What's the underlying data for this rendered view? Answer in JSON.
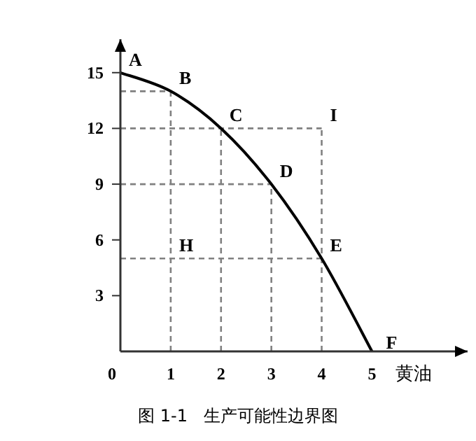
{
  "chart_data": {
    "type": "line",
    "xlabel": "黄油",
    "xlim": [
      0,
      6.9
    ],
    "ylim": [
      0,
      16.8
    ],
    "xticks": [
      0,
      1,
      2,
      3,
      4,
      5
    ],
    "yticks": [
      3,
      6,
      9,
      12,
      15
    ],
    "series": [
      {
        "color": "#000000",
        "x": [
          0,
          1,
          2,
          3,
          4,
          5
        ],
        "values": [
          15,
          14,
          12,
          9,
          5,
          0
        ]
      },
      {
        "color": "#808080",
        "line_style": "dashed",
        "x": [
          0,
          1
        ],
        "values": [
          14,
          14
        ]
      },
      {
        "color": "#808080",
        "line_style": "dashed",
        "x": [
          1,
          1
        ],
        "values": [
          0,
          14
        ]
      },
      {
        "color": "#808080",
        "line_style": "dashed",
        "x": [
          0,
          4
        ],
        "values": [
          12,
          12
        ]
      },
      {
        "color": "#808080",
        "line_style": "dashed",
        "x": [
          2,
          2
        ],
        "values": [
          0,
          12
        ]
      },
      {
        "color": "#808080",
        "line_style": "dashed",
        "x": [
          0,
          3
        ],
        "values": [
          9,
          9
        ]
      },
      {
        "color": "#808080",
        "line_style": "dashed",
        "x": [
          3,
          3
        ],
        "values": [
          0,
          9
        ]
      },
      {
        "color": "#808080",
        "line_style": "dashed",
        "x": [
          4,
          4
        ],
        "values": [
          0,
          12
        ]
      },
      {
        "color": "#808080",
        "line_style": "dashed",
        "x": [
          0,
          4
        ],
        "values": [
          5,
          5
        ]
      }
    ],
    "annotations": [
      {
        "text": "A",
        "x": 0,
        "y": 15
      },
      {
        "text": "B",
        "x": 1,
        "y": 14
      },
      {
        "text": "C",
        "x": 2,
        "y": 12
      },
      {
        "text": "D",
        "x": 3,
        "y": 9
      },
      {
        "text": "E",
        "x": 4,
        "y": 5
      },
      {
        "text": "F",
        "x": 5,
        "y": 0
      },
      {
        "text": "H",
        "x": 1,
        "y": 5
      },
      {
        "text": "I",
        "x": 4,
        "y": 12
      },
      "图 1-1   生产可能性边界图"
    ]
  }
}
